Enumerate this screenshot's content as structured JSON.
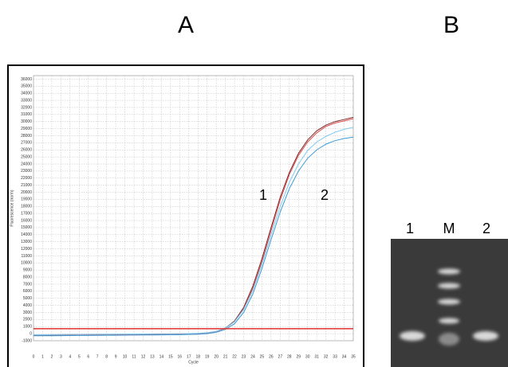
{
  "panels": [
    "A",
    "B"
  ],
  "chart_data": {
    "type": "line",
    "x_label": "Cycle",
    "y_label": "Fluorescence (norm)",
    "x": [
      0,
      1,
      2,
      3,
      4,
      5,
      6,
      7,
      8,
      9,
      10,
      11,
      12,
      13,
      14,
      15,
      16,
      17,
      18,
      19,
      20,
      21,
      22,
      23,
      24,
      25,
      26,
      27,
      28,
      29,
      30,
      31,
      32,
      33,
      34,
      35
    ],
    "series": [
      {
        "color": "#7a2a2a",
        "values": [
          -250,
          -250,
          -240,
          -230,
          -220,
          -210,
          -200,
          -190,
          -180,
          -170,
          -160,
          -150,
          -140,
          -130,
          -120,
          -110,
          -100,
          -80,
          -40,
          50,
          300,
          800,
          1800,
          3700,
          6700,
          10600,
          15000,
          19300,
          22800,
          25500,
          27400,
          28700,
          29500,
          30000,
          30300,
          30600
        ]
      },
      {
        "color": "#e04a4a",
        "values": [
          -200,
          -200,
          -190,
          -180,
          -170,
          -160,
          -150,
          -140,
          -130,
          -120,
          -110,
          -100,
          -90,
          -80,
          -70,
          -60,
          -50,
          -30,
          0,
          80,
          280,
          750,
          1700,
          3500,
          6400,
          10200,
          14600,
          18900,
          22500,
          25200,
          27100,
          28400,
          29300,
          29800,
          30100,
          30400
        ]
      },
      {
        "color": "#3d9ad8",
        "values": [
          -300,
          -300,
          -290,
          -280,
          -270,
          -260,
          -250,
          -240,
          -230,
          -220,
          -210,
          -200,
          -190,
          -180,
          -170,
          -160,
          -150,
          -120,
          -80,
          0,
          200,
          600,
          1400,
          3000,
          5600,
          9200,
          13300,
          17200,
          20500,
          23000,
          24800,
          26000,
          26800,
          27300,
          27600,
          27800
        ]
      },
      {
        "color": "#7ccaf0",
        "values": [
          -150,
          -150,
          -140,
          -130,
          -120,
          -110,
          -100,
          -90,
          -80,
          -70,
          -60,
          -50,
          -40,
          -30,
          -20,
          -10,
          0,
          20,
          60,
          140,
          340,
          800,
          1700,
          3400,
          6100,
          9800,
          14000,
          18000,
          21400,
          24000,
          25900,
          27100,
          27900,
          28500,
          28900,
          29200
        ]
      }
    ],
    "threshold": 700,
    "threshold_color": "#e03030",
    "xlim": [
      0,
      35
    ],
    "xticks": [
      0,
      1,
      2,
      3,
      4,
      5,
      6,
      7,
      8,
      9,
      10,
      11,
      12,
      13,
      14,
      15,
      16,
      17,
      18,
      19,
      20,
      21,
      22,
      23,
      24,
      25,
      26,
      27,
      28,
      29,
      30,
      31,
      32,
      33,
      34,
      35
    ],
    "ylim": [
      -1000,
      36500
    ],
    "yticks": [
      -1000,
      0,
      1000,
      2000,
      3000,
      4000,
      5000,
      6000,
      7000,
      8000,
      9000,
      10000,
      11000,
      12000,
      13000,
      14000,
      15000,
      16000,
      17000,
      18000,
      19000,
      20000,
      21000,
      22000,
      23000,
      24000,
      25000,
      26000,
      27000,
      28000,
      29000,
      30000,
      31000,
      32000,
      33000,
      34000,
      35000,
      36000
    ],
    "grid": true,
    "annotations": [
      "1",
      "2"
    ]
  },
  "gel": {
    "lane_labels": [
      "1",
      "M",
      "2"
    ]
  }
}
